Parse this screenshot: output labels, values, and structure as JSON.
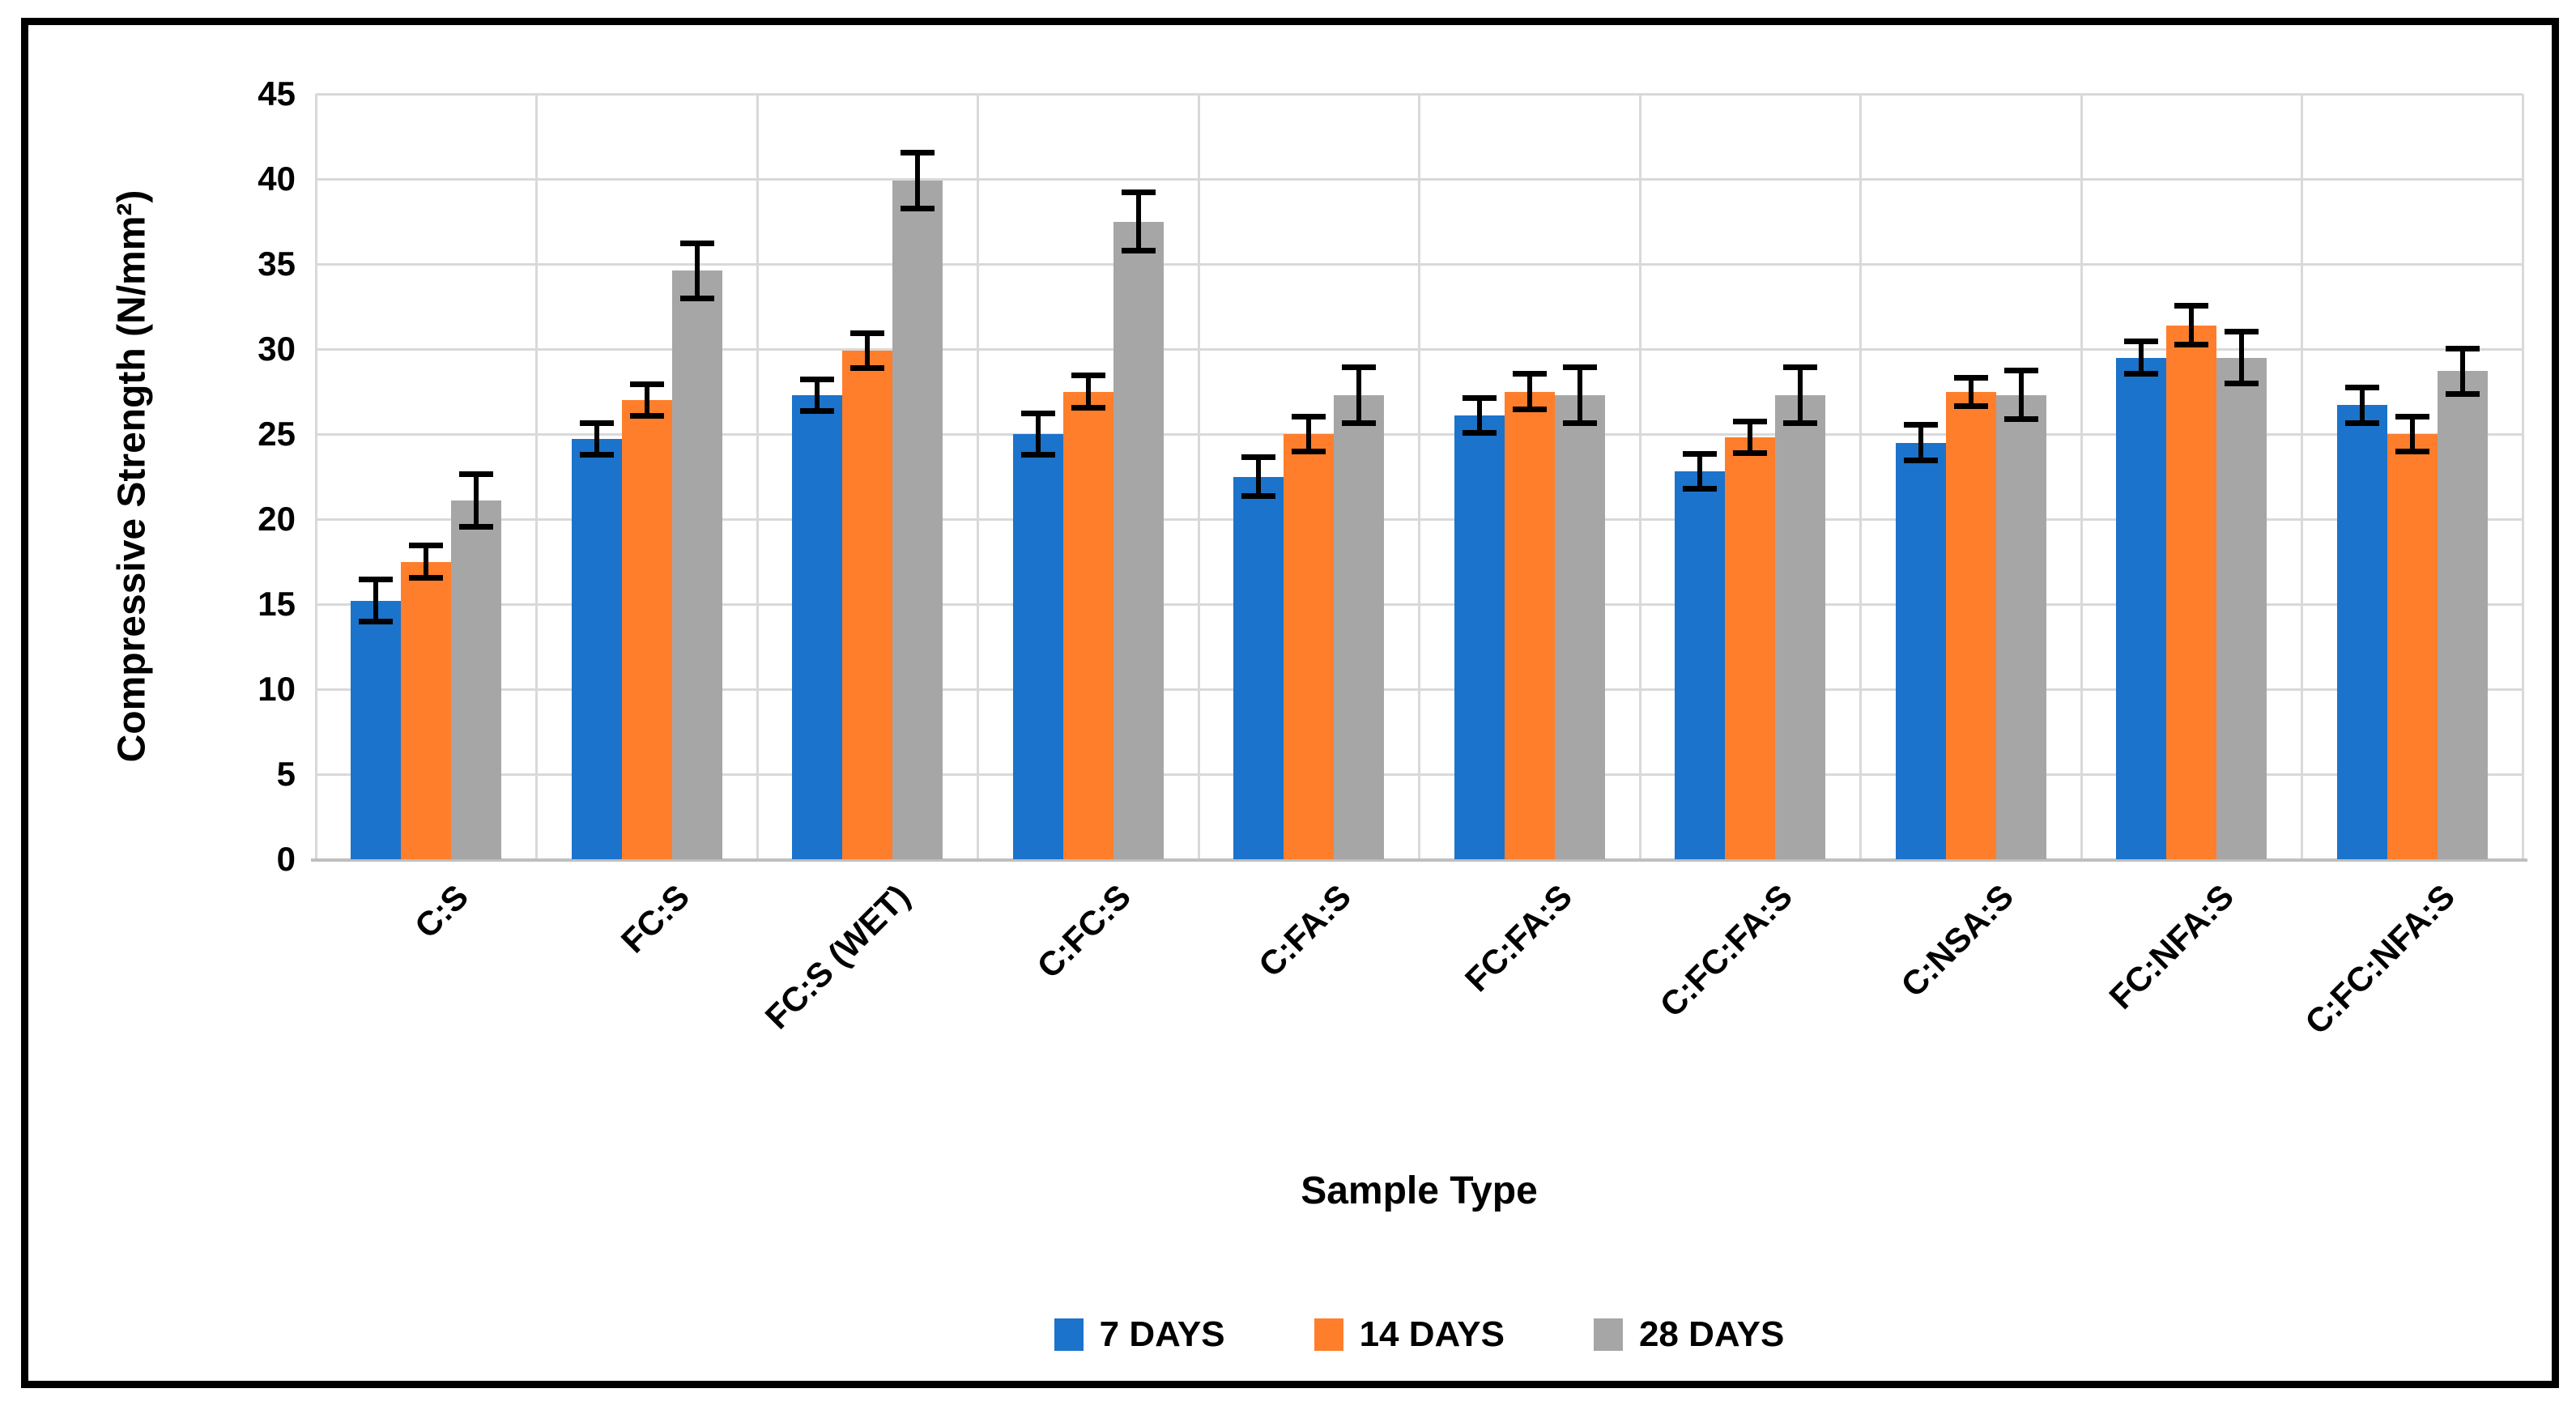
{
  "figure": {
    "y_axis_title": "Compressive Strength (N/mm²)",
    "x_axis_title": "Sample Type"
  },
  "chart_data": {
    "type": "bar",
    "title": "",
    "xlabel": "Sample Type",
    "ylabel": "Compressive Strength (N/mm²)",
    "ylim": [
      0,
      45
    ],
    "ytick_step": 5,
    "grid": true,
    "legend_position": "bottom",
    "error_bars": true,
    "categories": [
      "C:S",
      "FC:S",
      "FC:S (WET)",
      "C:FC:S",
      "C:FA:S",
      "FC:FA:S",
      "C:FC:FA:S",
      "C:NSA:S",
      "FC:NFA:S",
      "C:FC:NFA:S"
    ],
    "series": [
      {
        "name": "7 DAYS",
        "color": "#1b73cb",
        "values": [
          15.2,
          24.7,
          27.3,
          25.0,
          22.5,
          26.1,
          22.8,
          24.5,
          29.5,
          26.7
        ],
        "errors": [
          1.4,
          1.1,
          1.1,
          1.4,
          1.3,
          1.2,
          1.2,
          1.2,
          1.1,
          1.2
        ]
      },
      {
        "name": "14 DAYS",
        "color": "#ff7e2b",
        "values": [
          17.5,
          27.0,
          29.9,
          27.5,
          25.0,
          27.5,
          24.8,
          27.5,
          31.4,
          25.0
        ],
        "errors": [
          1.1,
          1.1,
          1.2,
          1.1,
          1.2,
          1.2,
          1.1,
          1.0,
          1.3,
          1.2
        ]
      },
      {
        "name": "28 DAYS",
        "color": "#a6a6a6",
        "values": [
          21.1,
          34.6,
          39.9,
          37.5,
          27.3,
          27.3,
          27.3,
          27.3,
          29.5,
          28.7
        ],
        "errors": [
          1.7,
          1.8,
          1.8,
          1.9,
          1.8,
          1.8,
          1.8,
          1.6,
          1.7,
          1.5
        ]
      }
    ],
    "colors": {
      "gridline": "#d9d9d9",
      "axis_line": "#bfbfbf",
      "error_bar": "#000000",
      "text": "#000000",
      "frame_border": "#000000",
      "background": "#ffffff"
    }
  }
}
